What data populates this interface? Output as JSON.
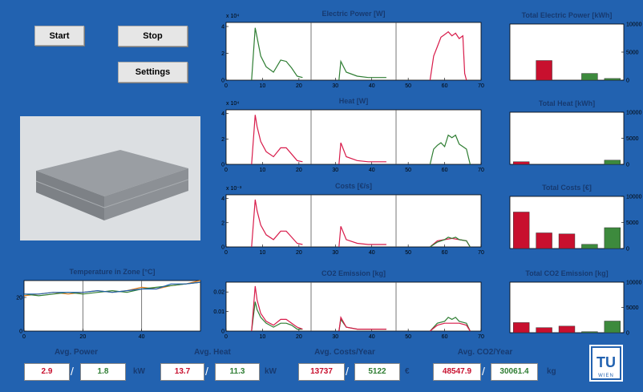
{
  "buttons": [
    "Start",
    "Stop",
    "Settings"
  ],
  "chart_data": [
    {
      "type": "line",
      "title": "Electric Power [W]",
      "y_exponent": "x 10⁴",
      "xlim": [
        0,
        70
      ],
      "xticks": [
        0,
        10,
        20,
        30,
        40,
        50,
        60,
        70
      ],
      "ylim": [
        0,
        4.3
      ],
      "yticks": [
        0,
        2,
        4
      ],
      "series": [
        {
          "color": "#2e7d32",
          "x": [
            7,
            8,
            8.5,
            9.5,
            11,
            13,
            15,
            16.5,
            18,
            19.5,
            21,
            25,
            31,
            31.5,
            33,
            36,
            39,
            42,
            44
          ],
          "values": [
            0,
            3.9,
            3.2,
            1.8,
            1.0,
            0.6,
            1.5,
            1.4,
            0.9,
            0.3,
            0.2,
            null,
            0,
            1.4,
            0.6,
            0.3,
            0.2,
            0.2,
            0.2
          ]
        },
        {
          "color": "#d81b4a",
          "x": [
            56,
            57,
            58,
            59,
            60,
            61,
            62,
            63,
            64,
            65,
            65.5,
            66
          ],
          "values": [
            0,
            1.8,
            2.5,
            3.2,
            3.4,
            3.6,
            3.3,
            3.5,
            3.1,
            3.3,
            0.5,
            0
          ]
        }
      ]
    },
    {
      "type": "line",
      "title": "Heat [W]",
      "y_exponent": "x 10⁴",
      "xlim": [
        0,
        70
      ],
      "xticks": [
        0,
        10,
        20,
        30,
        40,
        50,
        60,
        70
      ],
      "ylim": [
        0,
        4.3
      ],
      "yticks": [
        0,
        2,
        4
      ],
      "series": [
        {
          "color": "#d81b4a",
          "x": [
            7,
            8,
            8.5,
            9.5,
            11,
            13,
            15,
            16.5,
            18,
            19.5,
            21,
            25,
            31,
            31.5,
            33,
            36,
            39,
            42,
            44
          ],
          "values": [
            0,
            3.9,
            3.0,
            1.8,
            1.0,
            0.6,
            1.3,
            1.3,
            0.8,
            0.3,
            0.2,
            null,
            0,
            1.7,
            0.6,
            0.3,
            0.2,
            0.2,
            0.2
          ]
        },
        {
          "color": "#2e7d32",
          "x": [
            56,
            57,
            58,
            59,
            60,
            61,
            62,
            63,
            64,
            65,
            66,
            67
          ],
          "values": [
            0,
            1.2,
            1.5,
            1.7,
            1.4,
            2.3,
            2.1,
            2.3,
            1.6,
            1.4,
            1.2,
            0
          ]
        }
      ]
    },
    {
      "type": "line",
      "title": "Costs [€/s]",
      "y_exponent": "x 10⁻³",
      "xlim": [
        0,
        70
      ],
      "xticks": [
        0,
        10,
        20,
        30,
        40,
        50,
        60,
        70
      ],
      "ylim": [
        0,
        4.3
      ],
      "yticks": [
        0,
        2,
        4
      ],
      "series": [
        {
          "color": "#d81b4a",
          "x": [
            7,
            8,
            8.5,
            9.5,
            11,
            13,
            15,
            16.5,
            18,
            19.5,
            21,
            25,
            31,
            31.5,
            33,
            36,
            39,
            42,
            44,
            50,
            56,
            58,
            60,
            62,
            64,
            66,
            67
          ],
          "values": [
            0,
            3.9,
            3.0,
            1.8,
            1.0,
            0.6,
            1.3,
            1.3,
            0.8,
            0.3,
            0.2,
            null,
            0,
            1.7,
            0.6,
            0.3,
            0.2,
            0.2,
            0.2,
            null,
            0,
            0.5,
            0.6,
            0.7,
            0.6,
            0.5,
            0
          ]
        },
        {
          "color": "#2e7d32",
          "x": [
            56,
            58,
            60,
            61,
            62,
            63,
            64,
            66,
            67
          ],
          "values": [
            0,
            0.4,
            0.6,
            0.8,
            0.7,
            0.8,
            0.6,
            0.5,
            0
          ]
        }
      ]
    },
    {
      "type": "line",
      "title": "CO2 Emission [kg]",
      "xlim": [
        0,
        70
      ],
      "xticks": [
        0,
        10,
        20,
        30,
        40,
        50,
        60,
        70
      ],
      "ylim": [
        0,
        0.025
      ],
      "yticks": [
        0,
        0.01,
        0.02
      ],
      "series": [
        {
          "color": "#2e7d32",
          "x": [
            7,
            8,
            8.5,
            9.5,
            11,
            13,
            15,
            16.5,
            18,
            19.5,
            21,
            25,
            31,
            31.5,
            33,
            36,
            39,
            42,
            44,
            50,
            56,
            58,
            60,
            61,
            62,
            63,
            64,
            66,
            67
          ],
          "values": [
            0,
            0.015,
            0.011,
            0.007,
            0.004,
            0.002,
            0.004,
            0.004,
            0.003,
            0.001,
            0.001,
            null,
            0,
            0.006,
            0.002,
            0.001,
            0.001,
            0.001,
            0.001,
            null,
            0,
            0.004,
            0.005,
            0.007,
            0.006,
            0.007,
            0.005,
            0.004,
            0
          ]
        },
        {
          "color": "#d81b4a",
          "x": [
            7,
            8,
            8.5,
            9.5,
            11,
            13,
            15,
            16.5,
            18,
            19.5,
            21,
            25,
            31,
            31.5,
            33,
            36,
            39,
            42,
            44,
            50,
            56,
            58,
            60,
            62,
            64,
            66,
            67
          ],
          "values": [
            0,
            0.023,
            0.016,
            0.009,
            0.005,
            0.003,
            0.006,
            0.006,
            0.004,
            0.002,
            0.001,
            null,
            0,
            0.007,
            0.002,
            0.001,
            0.001,
            0.001,
            0.001,
            null,
            0,
            0.003,
            0.004,
            0.004,
            0.004,
            0.003,
            0
          ]
        }
      ]
    },
    {
      "type": "line",
      "title": "Temperature in Zone [°C]",
      "xlim": [
        0,
        60
      ],
      "xticks": [
        0,
        20,
        40
      ],
      "ylim": [
        0,
        30
      ],
      "yticks": [
        0,
        20
      ],
      "series": [
        {
          "color": "#e07b1a",
          "x": [
            0,
            5,
            10,
            15,
            20,
            25,
            30,
            35,
            40,
            45,
            50,
            55,
            60
          ],
          "values": [
            21,
            22,
            23,
            22,
            23,
            24,
            23,
            24,
            26,
            25,
            27,
            28,
            30
          ]
        },
        {
          "color": "#2e7d32",
          "x": [
            0,
            5,
            10,
            15,
            20,
            25,
            30,
            35,
            40,
            45,
            50,
            55,
            60
          ],
          "values": [
            22,
            21,
            22,
            23,
            22,
            23,
            24,
            23,
            25,
            26,
            27,
            28,
            29
          ]
        },
        {
          "color": "#1f5fae",
          "x": [
            0,
            5,
            10,
            15,
            20,
            25,
            30,
            35,
            40,
            45,
            50,
            55,
            60
          ],
          "values": [
            22,
            22,
            23,
            23,
            23,
            24,
            23,
            24,
            25,
            25,
            28,
            28,
            29
          ]
        }
      ]
    },
    {
      "type": "bar",
      "title": "Total Electric Power [kWh]",
      "categories": [
        null,
        null,
        null,
        null,
        null
      ],
      "values": [
        0,
        3500,
        0,
        1200,
        300
      ],
      "colors": [
        "#c8102e",
        "#c8102e",
        "#c8102e",
        "#3d8a3d",
        "#3d8a3d"
      ],
      "ylim": [
        0,
        10000
      ],
      "yticks": [
        0,
        5000,
        10000
      ]
    },
    {
      "type": "bar",
      "title": "Total Heat [kWh]",
      "categories": [
        null,
        null,
        null,
        null,
        null
      ],
      "values": [
        500,
        0,
        0,
        0,
        800
      ],
      "colors": [
        "#c8102e",
        "#c8102e",
        "#c8102e",
        "#3d8a3d",
        "#3d8a3d"
      ],
      "ylim": [
        0,
        10000
      ],
      "yticks": [
        0,
        5000,
        10000
      ]
    },
    {
      "type": "bar",
      "title": "Total Costs [€]",
      "categories": [
        null,
        null,
        null,
        null,
        null
      ],
      "values": [
        7000,
        3000,
        2800,
        800,
        4000
      ],
      "colors": [
        "#c8102e",
        "#c8102e",
        "#c8102e",
        "#3d8a3d",
        "#3d8a3d"
      ],
      "ylim": [
        0,
        10000
      ],
      "yticks": [
        0,
        5000,
        10000
      ]
    },
    {
      "type": "bar",
      "title": "Total CO2 Emission [kg]",
      "categories": [
        null,
        null,
        null,
        null,
        null
      ],
      "values": [
        2000,
        1000,
        1300,
        200,
        2300
      ],
      "colors": [
        "#c8102e",
        "#c8102e",
        "#c8102e",
        "#3d8a3d",
        "#3d8a3d"
      ],
      "ylim": [
        0,
        10000
      ],
      "yticks": [
        0,
        5000,
        10000
      ]
    }
  ],
  "summary": {
    "labels": [
      "Avg. Power",
      "Avg. Heat",
      "Avg. Costs/Year",
      "Avg. CO2/Year"
    ],
    "values": [
      [
        "2.9",
        "1.8"
      ],
      [
        "13.7",
        "11.3"
      ],
      [
        "13737",
        "5122"
      ],
      [
        "48547.9",
        "30061.4"
      ]
    ],
    "separator": "/",
    "units": [
      "kW",
      "kW",
      "€",
      "kg"
    ]
  },
  "logo": {
    "top": "TU",
    "bottom": "WIEN"
  }
}
